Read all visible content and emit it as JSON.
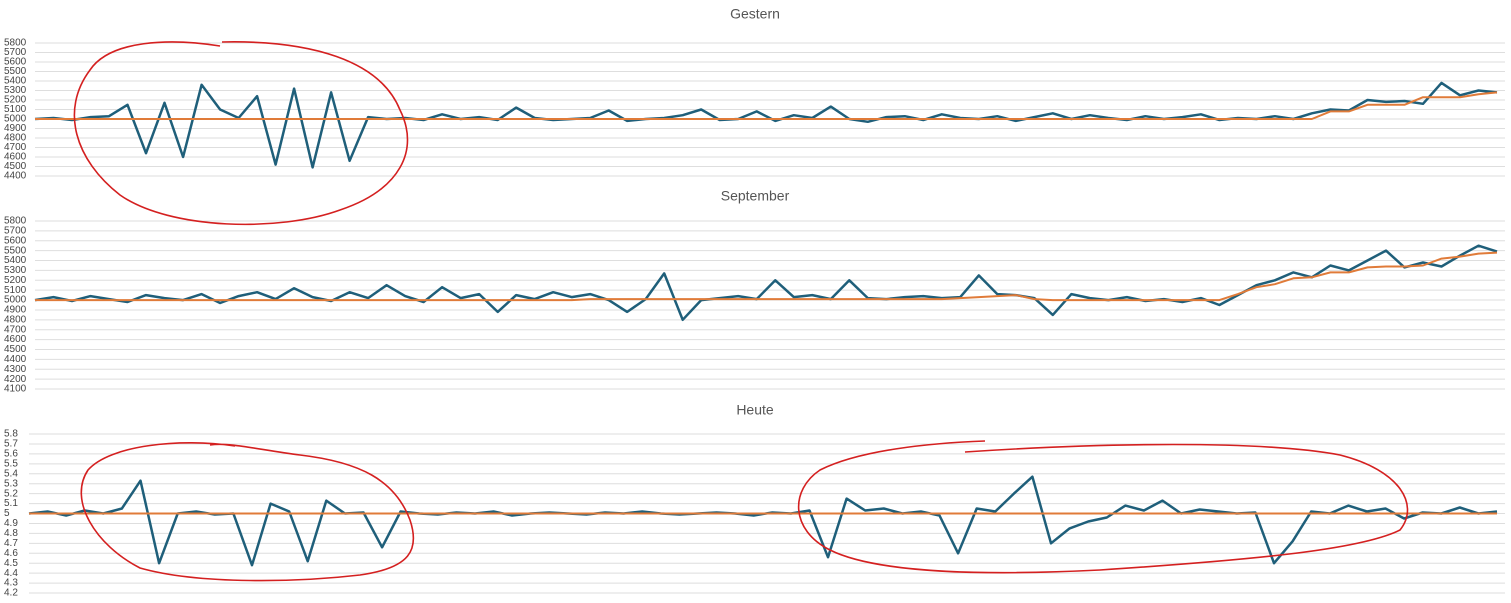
{
  "chart_data": [
    {
      "type": "line",
      "title": "Gestern",
      "ylim": [
        4400,
        5800
      ],
      "yticks": [
        4400,
        4500,
        4600,
        4700,
        4800,
        4900,
        5000,
        5100,
        5200,
        5300,
        5400,
        5500,
        5600,
        5700,
        5800
      ],
      "grid": true,
      "series": [
        {
          "color": "#1f5f7a",
          "values": [
            5000,
            5010,
            4990,
            5020,
            5030,
            5150,
            4640,
            5170,
            4600,
            5360,
            5100,
            5010,
            5240,
            4520,
            5320,
            4490,
            5280,
            4560,
            5020,
            5000,
            5010,
            4990,
            5050,
            5000,
            5020,
            4990,
            5120,
            5010,
            4990,
            5000,
            5010,
            5090,
            4980,
            5000,
            5010,
            5040,
            5100,
            4990,
            5000,
            5080,
            4980,
            5040,
            5010,
            5130,
            5000,
            4970,
            5020,
            5030,
            4990,
            5050,
            5010,
            5000,
            5030,
            4980,
            5020,
            5060,
            5000,
            5040,
            5010,
            4990,
            5030,
            5000,
            5020,
            5050,
            4990,
            5010,
            5000,
            5030,
            5000,
            5060,
            5100,
            5090,
            5200,
            5180,
            5190,
            5160,
            5380,
            5250,
            5300,
            5280
          ]
        },
        {
          "color": "#e07b39",
          "values": [
            5000,
            5000,
            5000,
            5000,
            5000,
            5000,
            5000,
            5000,
            5000,
            5000,
            5000,
            5000,
            5000,
            5000,
            5000,
            5000,
            5000,
            5000,
            5000,
            5000,
            5000,
            5000,
            5000,
            5000,
            5000,
            5000,
            5000,
            5000,
            5000,
            5000,
            5000,
            5000,
            5000,
            5000,
            5000,
            5000,
            5000,
            5000,
            5000,
            5000,
            5000,
            5000,
            5000,
            5000,
            5000,
            5000,
            5000,
            5000,
            5000,
            5000,
            5000,
            5000,
            5000,
            5000,
            5000,
            5000,
            5000,
            5000,
            5000,
            5000,
            5000,
            5000,
            5000,
            5000,
            5000,
            5000,
            5000,
            5000,
            5000,
            5000,
            5080,
            5080,
            5150,
            5150,
            5150,
            5230,
            5230,
            5230,
            5260,
            5280
          ]
        }
      ]
    },
    {
      "type": "line",
      "title": "September",
      "ylim": [
        4100,
        5800
      ],
      "yticks": [
        4100,
        4200,
        4300,
        4400,
        4500,
        4600,
        4700,
        4800,
        4900,
        5000,
        5100,
        5200,
        5300,
        5400,
        5500,
        5600,
        5700,
        5800
      ],
      "grid": true,
      "series": [
        {
          "color": "#1f5f7a",
          "values": [
            5000,
            5030,
            4990,
            5040,
            5010,
            4980,
            5050,
            5020,
            5000,
            5060,
            4970,
            5040,
            5080,
            5010,
            5120,
            5030,
            4990,
            5080,
            5020,
            5150,
            5040,
            4980,
            5130,
            5020,
            5060,
            4880,
            5050,
            5010,
            5080,
            5030,
            5060,
            5000,
            4880,
            5010,
            5270,
            4800,
            5000,
            5020,
            5040,
            5010,
            5200,
            5030,
            5050,
            5010,
            5200,
            5020,
            5010,
            5030,
            5040,
            5020,
            5030,
            5250,
            5060,
            5050,
            5020,
            4850,
            5060,
            5020,
            5000,
            5030,
            4990,
            5010,
            4980,
            5020,
            4950,
            5050,
            5150,
            5200,
            5280,
            5230,
            5350,
            5300,
            5400,
            5500,
            5330,
            5380,
            5340,
            5450,
            5550,
            5490
          ]
        },
        {
          "color": "#e07b39",
          "values": [
            5000,
            5000,
            5000,
            5000,
            5000,
            5000,
            5000,
            5000,
            5000,
            5000,
            5000,
            5000,
            5000,
            5000,
            5000,
            5000,
            5000,
            5000,
            5000,
            5000,
            5000,
            5000,
            5000,
            5000,
            5000,
            5000,
            5000,
            5000,
            5000,
            5000,
            5010,
            5010,
            5010,
            5010,
            5010,
            5010,
            5010,
            5010,
            5010,
            5010,
            5010,
            5010,
            5010,
            5010,
            5010,
            5010,
            5010,
            5010,
            5010,
            5010,
            5020,
            5030,
            5040,
            5050,
            5010,
            5000,
            5000,
            5000,
            5000,
            5000,
            5000,
            5000,
            5000,
            5000,
            5000,
            5060,
            5130,
            5160,
            5220,
            5230,
            5280,
            5280,
            5330,
            5340,
            5340,
            5350,
            5420,
            5440,
            5470,
            5480
          ]
        }
      ]
    },
    {
      "type": "line",
      "title": "Heute",
      "ylim": [
        4.2,
        5.8
      ],
      "yticks": [
        4.2,
        4.3,
        4.4,
        4.5,
        4.6,
        4.7,
        4.8,
        4.9,
        5,
        5.1,
        5.2,
        5.3,
        5.4,
        5.5,
        5.6,
        5.7,
        5.8
      ],
      "grid": true,
      "series": [
        {
          "color": "#1f5f7a",
          "values": [
            5.0,
            5.02,
            4.98,
            5.03,
            5.0,
            5.05,
            5.33,
            4.5,
            5.0,
            5.02,
            4.99,
            5.0,
            4.48,
            5.1,
            5.02,
            4.52,
            5.13,
            5.0,
            5.01,
            4.66,
            5.02,
            5.0,
            4.99,
            5.01,
            5.0,
            5.02,
            4.98,
            5.0,
            5.01,
            5.0,
            4.99,
            5.01,
            5.0,
            5.02,
            5.0,
            4.99,
            5.0,
            5.01,
            5.0,
            4.98,
            5.01,
            5.0,
            5.03,
            4.56,
            5.15,
            5.03,
            5.05,
            5.0,
            5.02,
            4.98,
            4.6,
            5.05,
            5.02,
            5.2,
            5.37,
            4.7,
            4.85,
            4.92,
            4.96,
            5.08,
            5.03,
            5.13,
            5.0,
            5.04,
            5.02,
            5.0,
            5.01,
            4.5,
            4.72,
            5.02,
            5.0,
            5.08,
            5.02,
            5.05,
            4.95,
            5.01,
            5.0,
            5.06,
            5.0,
            5.02
          ]
        },
        {
          "color": "#e07b39",
          "values": [
            5,
            5,
            5,
            5,
            5,
            5,
            5,
            5,
            5,
            5,
            5,
            5,
            5,
            5,
            5,
            5,
            5,
            5,
            5,
            5,
            5,
            5,
            5,
            5,
            5,
            5,
            5,
            5,
            5,
            5,
            5,
            5,
            5,
            5,
            5,
            5,
            5,
            5,
            5,
            5,
            5,
            5,
            5,
            5,
            5,
            5,
            5,
            5,
            5,
            5,
            5,
            5,
            5,
            5,
            5,
            5,
            5,
            5,
            5,
            5,
            5,
            5,
            5,
            5,
            5,
            5,
            5,
            5,
            5,
            5,
            5,
            5,
            5,
            5,
            5,
            5,
            5,
            5,
            5,
            5
          ]
        }
      ]
    }
  ]
}
